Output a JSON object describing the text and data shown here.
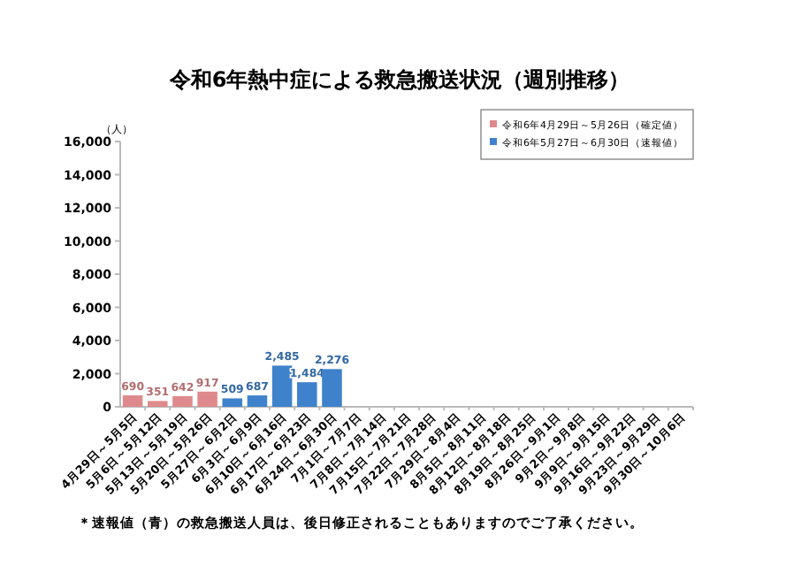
{
  "chart_data": {
    "type": "bar",
    "title": "令和6年熱中症による救急搬送状況（週別推移）",
    "ylabel": "（人）",
    "categories": [
      "4月29日～5月5日",
      "5月6日～5月12日",
      "5月13日～5月19日",
      "5月20日～5月26日",
      "5月27日～6月2日",
      "6月3日～6月9日",
      "6月10日～6月16日",
      "6月17日～6月23日",
      "6月24日～6月30日",
      "7月1日～7月7日",
      "7月8日～7月14日",
      "7月15日～7月21日",
      "7月22日～7月28日",
      "7月29日～8月4日",
      "8月5日～8月11日",
      "8月12日～8月18日",
      "8月19日～8月25日",
      "8月26日～9月1日",
      "9月2日～9月8日",
      "9月9日～9月15日",
      "9月16日～9月22日",
      "9月23日～9月29日",
      "9月30日～10月6日"
    ],
    "series": [
      {
        "name": "令和6年4月29日～5月26日（確定値）",
        "color": "#de8a8c",
        "values": [
          690,
          351,
          642,
          917,
          null,
          null,
          null,
          null,
          null,
          null,
          null,
          null,
          null,
          null,
          null,
          null,
          null,
          null,
          null,
          null,
          null,
          null,
          null
        ],
        "value_labels": [
          "690",
          "351",
          "642",
          "917",
          null,
          null,
          null,
          null,
          null,
          null,
          null,
          null,
          null,
          null,
          null,
          null,
          null,
          null,
          null,
          null,
          null,
          null,
          null
        ]
      },
      {
        "name": "令和6年5月27日～6月30日（速報値）",
        "color": "#3f82cc",
        "values": [
          null,
          null,
          null,
          null,
          509,
          687,
          2485,
          1484,
          2276,
          null,
          null,
          null,
          null,
          null,
          null,
          null,
          null,
          null,
          null,
          null,
          null,
          null,
          null
        ],
        "value_labels": [
          null,
          null,
          null,
          null,
          "509",
          "687",
          "2,485",
          "1,484",
          "2,276",
          null,
          null,
          null,
          null,
          null,
          null,
          null,
          null,
          null,
          null,
          null,
          null,
          null,
          null
        ]
      }
    ],
    "ylim": [
      0,
      16000
    ],
    "yticks": [
      {
        "value": 0,
        "label": "0"
      },
      {
        "value": 2000,
        "label": "2,000"
      },
      {
        "value": 4000,
        "label": "4,000"
      },
      {
        "value": 6000,
        "label": "6,000"
      },
      {
        "value": 8000,
        "label": "8,000"
      },
      {
        "value": 10000,
        "label": "10,000"
      },
      {
        "value": 12000,
        "label": "12,000"
      },
      {
        "value": 14000,
        "label": "14,000"
      },
      {
        "value": 16000,
        "label": "16,000"
      }
    ],
    "legend": "top right",
    "annotations": [
      "＊速報値（青）の救急搬送人員は、後日修正されることもありますのでご了承ください。"
    ]
  }
}
